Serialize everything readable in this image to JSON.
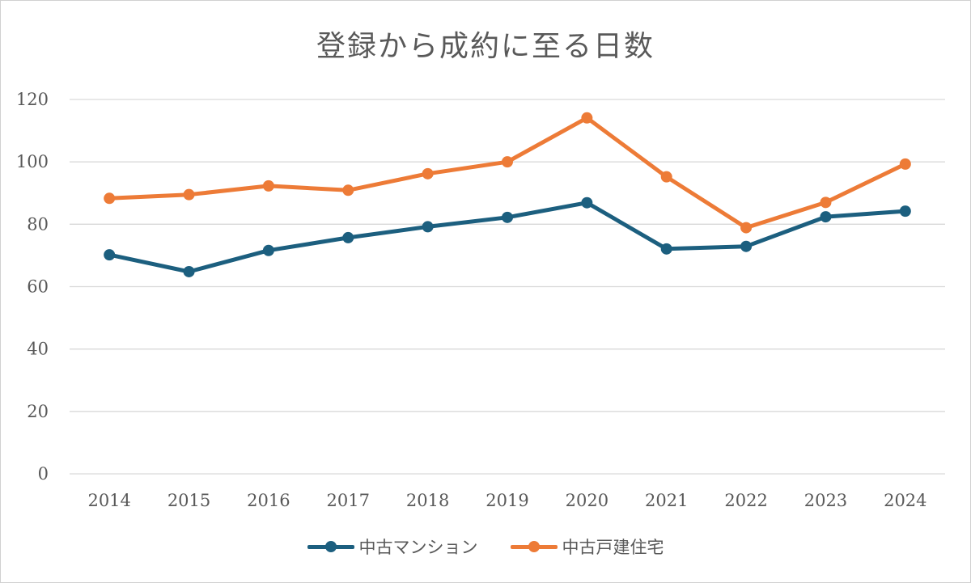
{
  "chart_data": {
    "type": "line",
    "title": "登録から成約に至る日数",
    "xlabel": "",
    "ylabel": "",
    "categories": [
      "2014",
      "2015",
      "2016",
      "2017",
      "2018",
      "2019",
      "2020",
      "2021",
      "2022",
      "2023",
      "2024"
    ],
    "yticks": [
      "0",
      "20",
      "40",
      "60",
      "80",
      "100",
      "120"
    ],
    "ylim": [
      0,
      120
    ],
    "grid": true,
    "legend": "bottom",
    "series": [
      {
        "name": "中古マンション",
        "color": "#1c5f7f",
        "values": [
          70.2,
          64.8,
          71.6,
          75.7,
          79.2,
          82.2,
          86.9,
          72.1,
          72.9,
          82.4,
          84.2
        ]
      },
      {
        "name": "中古戸建住宅",
        "color": "#ed7b37",
        "values": [
          88.3,
          89.5,
          92.3,
          90.9,
          96.2,
          100.0,
          114.1,
          95.2,
          78.9,
          87.0,
          99.3
        ]
      }
    ]
  }
}
